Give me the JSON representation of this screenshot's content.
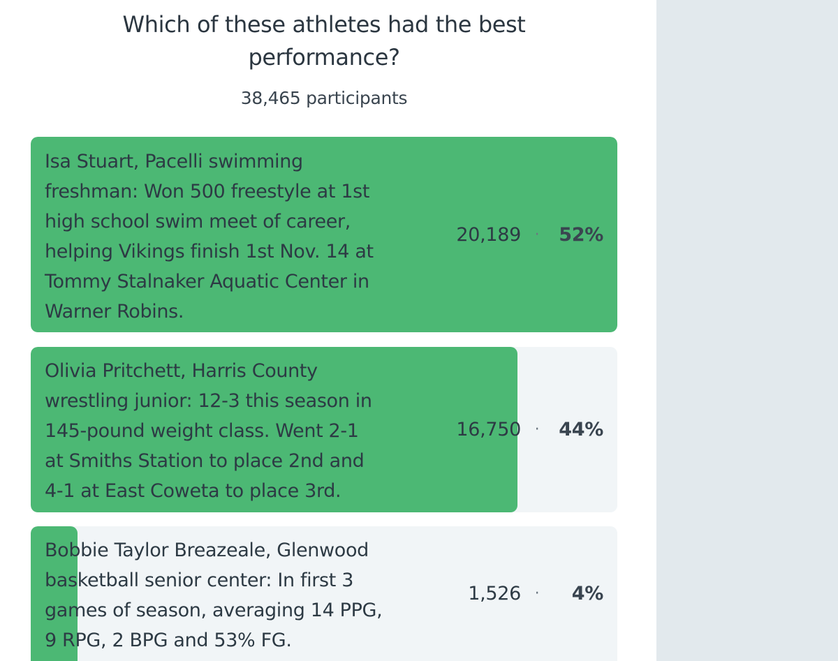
{
  "poll": {
    "question": "Which of these athletes had the best\nperformance?",
    "participants": "38,465 participants",
    "accent_color": "#4cb874",
    "options": [
      {
        "text": "Isa Stuart, Pacelli swimming\nfreshman: Won 500 freestyle at 1st\nhigh school swim meet of career,\nhelping Vikings finish 1st Nov. 14 at\nTommy Stalnaker Aquatic Center in\nWarner Robins.",
        "votes": "20,189",
        "separator": "·",
        "percent_label": "52%",
        "share": 1.0
      },
      {
        "text": "Olivia Pritchett, Harris County\nwrestling junior: 12-3 this season in\n145-pound weight class. Went 2-1\nat Smiths Station to place 2nd and\n4-1 at East Coweta to place 3rd.",
        "votes": "16,750",
        "separator": "·",
        "percent_label": "44%",
        "share": 0.83
      },
      {
        "text": "Bobbie Taylor Breazeale, Glenwood\nbasketball senior center: In first 3\ngames of season, averaging 14 PPG,\n9 RPG, 2 BPG and 53% FG.",
        "votes": "1,526",
        "separator": "·",
        "percent_label": "4%",
        "share": 0.08
      }
    ]
  }
}
